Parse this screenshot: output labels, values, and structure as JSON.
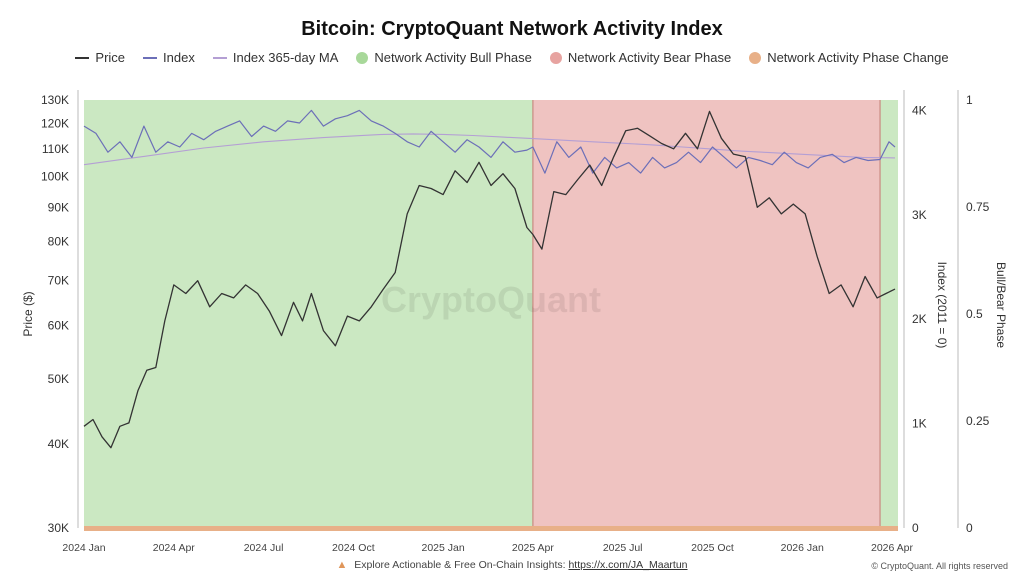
{
  "chart_data": {
    "type": "line",
    "title": "Bitcoin: CryptoQuant Network Activity Index",
    "watermark": "CryptoQuant",
    "legend": [
      {
        "label": "Price",
        "color": "#333333",
        "kind": "line"
      },
      {
        "label": "Index",
        "color": "#6c6fb8",
        "kind": "line"
      },
      {
        "label": "Index 365-day MA",
        "color": "#b49fd4",
        "kind": "line"
      },
      {
        "label": "Network Activity Bull Phase",
        "color": "#a8d89a",
        "kind": "dot"
      },
      {
        "label": "Network Activity Bear Phase",
        "color": "#e7a3a0",
        "kind": "dot"
      },
      {
        "label": "Network Activity Phase Change",
        "color": "#e8b088",
        "kind": "dot"
      }
    ],
    "x_ticks": [
      "2024 Jan",
      "2024 Apr",
      "2024 Jul",
      "2024 Oct",
      "2025 Jan",
      "2025 Apr",
      "2025 Jul",
      "2025 Oct",
      "2026 Jan",
      "2026 Apr"
    ],
    "x_tick_months": [
      0,
      3,
      6,
      9,
      12,
      15,
      18,
      21,
      24,
      27
    ],
    "x_range_months": [
      0,
      27.2
    ],
    "y_left": {
      "label": "Price ($)",
      "scale": "log",
      "range": [
        30000,
        130000
      ],
      "ticks": [
        30000,
        40000,
        50000,
        60000,
        70000,
        80000,
        90000,
        100000,
        110000,
        120000,
        130000
      ],
      "tick_labels": [
        "30K",
        "40K",
        "50K",
        "60K",
        "70K",
        "80K",
        "90K",
        "100K",
        "110K",
        "120K",
        "130K"
      ]
    },
    "y_right_index": {
      "label": "Index (2011 = 0)",
      "range": [
        0,
        4100
      ],
      "ticks": [
        0,
        1000,
        2000,
        3000,
        4000
      ],
      "tick_labels": [
        "0",
        "1K",
        "2K",
        "3K",
        "4K"
      ]
    },
    "y_right_phase": {
      "label": "Bull/Bear Phase",
      "range": [
        0,
        1
      ],
      "ticks": [
        0,
        0.25,
        0.5,
        0.75,
        1
      ],
      "tick_labels": [
        "0",
        "0.25",
        "0.5",
        "0.75",
        "1"
      ]
    },
    "phases": [
      {
        "phase": "bull",
        "start_month": 0,
        "end_month": 15.0
      },
      {
        "phase": "bear",
        "start_month": 15.0,
        "end_month": 26.6
      },
      {
        "phase": "bull",
        "start_month": 26.6,
        "end_month": 27.2
      }
    ],
    "series": [
      {
        "name": "Price",
        "color": "#333333",
        "x_months": [
          0,
          0.3,
          0.6,
          0.9,
          1.2,
          1.5,
          1.8,
          2.1,
          2.4,
          2.7,
          3.0,
          3.4,
          3.8,
          4.2,
          4.6,
          5.0,
          5.4,
          5.8,
          6.2,
          6.6,
          7.0,
          7.3,
          7.6,
          8.0,
          8.4,
          8.8,
          9.2,
          9.6,
          10.0,
          10.4,
          10.8,
          11.2,
          11.6,
          12.0,
          12.4,
          12.8,
          13.2,
          13.6,
          14.0,
          14.4,
          14.8,
          15.0,
          15.3,
          15.7,
          16.1,
          16.5,
          16.9,
          17.3,
          17.7,
          18.1,
          18.5,
          18.9,
          19.3,
          19.7,
          20.1,
          20.5,
          20.9,
          21.3,
          21.7,
          22.1,
          22.5,
          22.9,
          23.3,
          23.7,
          24.1,
          24.5,
          24.9,
          25.3,
          25.7,
          26.1,
          26.5,
          26.8,
          27.1
        ],
        "values": [
          42500,
          43500,
          41000,
          39500,
          42500,
          43000,
          48000,
          51500,
          52000,
          61000,
          69000,
          67000,
          70000,
          64000,
          67000,
          66000,
          69000,
          67000,
          63000,
          58000,
          65000,
          61000,
          67000,
          59000,
          56000,
          62000,
          61000,
          64000,
          68000,
          72000,
          88000,
          97000,
          96000,
          94000,
          102000,
          98000,
          105000,
          97000,
          101000,
          96000,
          84000,
          82000,
          78000,
          95000,
          94000,
          99000,
          104000,
          97000,
          107000,
          117000,
          118000,
          115000,
          112000,
          110000,
          116000,
          110000,
          125000,
          114000,
          108000,
          107000,
          90000,
          93000,
          88000,
          91000,
          88000,
          76000,
          67000,
          69000,
          64000,
          71000,
          66000,
          67000,
          68000
        ]
      },
      {
        "name": "Index",
        "color": "#6c6fb8",
        "x_months": [
          0,
          0.4,
          0.8,
          1.2,
          1.6,
          2.0,
          2.4,
          2.8,
          3.2,
          3.6,
          4.0,
          4.4,
          4.8,
          5.2,
          5.6,
          6.0,
          6.4,
          6.8,
          7.2,
          7.6,
          8.0,
          8.4,
          8.8,
          9.2,
          9.6,
          10.0,
          10.4,
          10.8,
          11.2,
          11.6,
          12.0,
          12.4,
          12.8,
          13.2,
          13.6,
          14.0,
          14.4,
          14.8,
          15.0,
          15.4,
          15.8,
          16.2,
          16.6,
          17.0,
          17.4,
          17.8,
          18.2,
          18.6,
          19.0,
          19.4,
          19.8,
          20.2,
          20.6,
          21.0,
          21.4,
          21.8,
          22.2,
          22.6,
          23.0,
          23.4,
          23.8,
          24.2,
          24.6,
          25.0,
          25.4,
          25.8,
          26.2,
          26.6,
          26.9,
          27.1
        ],
        "values": [
          3850,
          3780,
          3600,
          3700,
          3550,
          3850,
          3600,
          3700,
          3650,
          3780,
          3720,
          3800,
          3850,
          3900,
          3750,
          3850,
          3800,
          3900,
          3880,
          4000,
          3850,
          3920,
          3950,
          4000,
          3900,
          3850,
          3780,
          3700,
          3650,
          3800,
          3700,
          3600,
          3720,
          3650,
          3550,
          3700,
          3600,
          3620,
          3650,
          3400,
          3700,
          3550,
          3650,
          3400,
          3550,
          3450,
          3500,
          3400,
          3550,
          3450,
          3500,
          3600,
          3500,
          3650,
          3550,
          3450,
          3550,
          3520,
          3480,
          3600,
          3500,
          3450,
          3550,
          3580,
          3500,
          3550,
          3520,
          3530,
          3700,
          3650
        ]
      },
      {
        "name": "Index 365-day MA",
        "color": "#b49fd4",
        "x_months": [
          0,
          2,
          4,
          6,
          8,
          10,
          11,
          12,
          13,
          14,
          15,
          16,
          17,
          18,
          19,
          20,
          21,
          22,
          23,
          24,
          25,
          26,
          27.1
        ],
        "values": [
          3480,
          3560,
          3640,
          3700,
          3740,
          3770,
          3775,
          3770,
          3760,
          3745,
          3730,
          3715,
          3700,
          3685,
          3670,
          3650,
          3630,
          3610,
          3595,
          3580,
          3565,
          3550,
          3545
        ]
      }
    ]
  },
  "footer": {
    "text": "Explore Actionable & Free On-Chain Insights: ",
    "link": "https://x.com/JA_Maartun",
    "copyright": "© CryptoQuant. All rights reserved"
  }
}
